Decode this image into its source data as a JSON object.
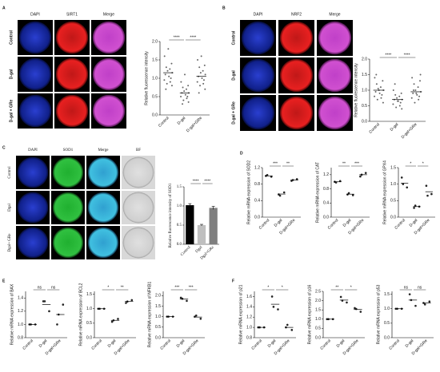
{
  "panel_labels": [
    "A",
    "B",
    "C",
    "D",
    "E",
    "F"
  ],
  "image_panels": [
    {
      "columns": [
        "DAPI",
        "SIRT1",
        "Merge"
      ],
      "rows": [
        "Control",
        "D-gal",
        "D-gal + GRe"
      ]
    },
    {
      "columns": [
        "DAPI",
        "NRF2",
        "Merge"
      ],
      "rows": [
        "Control",
        "D-gal",
        "D-gal + GRe"
      ]
    },
    {
      "columns": [
        "DAPI",
        "SOD1",
        "Merge",
        "BF"
      ],
      "rows": [
        "Control",
        "Dgal",
        "Dgal+ GRe"
      ]
    }
  ],
  "chart_data": [
    {
      "type": "dot",
      "y_label": "Relative fluorescence intensity",
      "categories": [
        "Control",
        "D-gal",
        "D-gal+GRe"
      ],
      "color": "#666666",
      "values": [
        1.15,
        0.6,
        1.05
      ],
      "points": [
        [
          1.6,
          1.4,
          1.3,
          1.25,
          1.2,
          1.15,
          1.1,
          1.05,
          1.0,
          0.95,
          0.9,
          0.85,
          0.8,
          0.7,
          1.8
        ],
        [
          0.9,
          0.8,
          0.75,
          0.7,
          0.65,
          0.6,
          0.6,
          0.55,
          0.5,
          0.5,
          0.45,
          0.4,
          0.35,
          0.3,
          1.1
        ],
        [
          1.5,
          1.35,
          1.3,
          1.2,
          1.15,
          1.1,
          1.05,
          1.0,
          0.95,
          0.9,
          0.85,
          0.8,
          0.7,
          0.6,
          1.6
        ]
      ],
      "ylim": [
        0,
        2
      ],
      "yticks": [
        {
          "value": 0,
          "label": "0.0"
        },
        0.5,
        {
          "value": 1,
          "label": "1.0"
        },
        1.5,
        {
          "value": 2,
          "label": "2.0"
        }
      ],
      "significance": [
        "****",
        "****"
      ]
    },
    {
      "type": "dot",
      "y_label": "Relative fluorescence intensity",
      "categories": [
        "Control",
        "D-gal",
        "D-gal+GRe"
      ],
      "color": "#666666",
      "values": [
        1.0,
        0.7,
        0.95
      ],
      "points": [
        [
          1.4,
          1.3,
          1.2,
          1.1,
          1.05,
          1.0,
          0.95,
          0.9,
          0.85,
          0.8,
          0.75,
          0.7,
          0.6,
          1.5,
          1.0
        ],
        [
          1.0,
          0.9,
          0.85,
          0.8,
          0.75,
          0.7,
          0.7,
          0.65,
          0.6,
          0.55,
          0.5,
          0.45,
          0.4,
          1.2,
          0.65
        ],
        [
          1.4,
          1.3,
          1.2,
          1.1,
          1.0,
          0.95,
          0.9,
          0.85,
          0.8,
          0.75,
          0.7,
          0.6,
          1.5,
          1.0,
          0.9
        ]
      ],
      "ylim": [
        0,
        2
      ],
      "yticks": [
        {
          "value": 0,
          "label": "0.0"
        },
        0.5,
        {
          "value": 1,
          "label": "1.0"
        },
        1.5,
        {
          "value": 2,
          "label": "2.0"
        }
      ],
      "significance": [
        "****",
        "****"
      ]
    },
    {
      "type": "bar",
      "y_label": "Relative fluorescence intensity of SOD1",
      "categories": [
        "Control",
        "Dgal",
        "Dgal+GRe"
      ],
      "values": [
        1.02,
        0.5,
        0.95
      ],
      "errors": [
        0.04,
        0.02,
        0.04
      ],
      "colors": [
        "#000000",
        "#bfbfbf",
        "#7f7f7f"
      ],
      "ylim": [
        0,
        1.5
      ],
      "yticks": [
        {
          "value": 0,
          "label": "0.0"
        },
        0.5,
        {
          "value": 1,
          "label": "1.0"
        },
        1.5
      ],
      "significance": [
        "****",
        "****"
      ]
    },
    {
      "type": "dot",
      "y_label": "Relative mRNA expression of SOD2",
      "categories": [
        "Control",
        "D-gal",
        "D-gal+GRe"
      ],
      "color": "#222222",
      "values": [
        1.0,
        0.56,
        0.9
      ],
      "points": [
        [
          1.0,
          0.98,
          1.02
        ],
        [
          0.55,
          0.6,
          0.52
        ],
        [
          0.88,
          0.92,
          0.9
        ]
      ],
      "ylim": [
        0,
        1.2
      ],
      "yticks": [
        {
          "value": 0,
          "label": "0.0"
        },
        0.4,
        0.8,
        1.2
      ],
      "significance": [
        "***",
        "**"
      ]
    },
    {
      "type": "dot",
      "y_label": "Relative mRNA expression of CAT",
      "categories": [
        "Control",
        "D-gal",
        "D-gal+GRe"
      ],
      "color": "#222222",
      "values": [
        1.0,
        0.65,
        1.2
      ],
      "points": [
        [
          1.0,
          1.02,
          0.98
        ],
        [
          0.64,
          0.62,
          0.68
        ],
        [
          1.15,
          1.25,
          1.2
        ]
      ],
      "ylim": [
        0,
        1.4
      ],
      "yticks": [
        {
          "value": 0,
          "label": "0.0"
        },
        0.4,
        0.8,
        1.2
      ],
      "significance": [
        "**",
        "***"
      ]
    },
    {
      "type": "dot",
      "y_label": "Relative mRNA expression of GPX4",
      "categories": [
        "Control",
        "D-gal",
        "D-gal+GRe"
      ],
      "color": "#222222",
      "values": [
        1.03,
        0.32,
        0.77
      ],
      "points": [
        [
          1.2,
          0.9,
          1.0
        ],
        [
          0.28,
          0.32,
          0.35
        ],
        [
          0.95,
          0.7,
          0.65
        ]
      ],
      "ylim": [
        0,
        1.5
      ],
      "yticks": [
        {
          "value": 0,
          "label": "0.0"
        },
        0.5,
        {
          "value": 1,
          "label": "1.0"
        },
        1.5
      ],
      "significance": [
        "*",
        "*"
      ]
    },
    {
      "type": "dot",
      "y_label": "Relative mRNA expression of BAX",
      "categories": [
        "Control",
        "D-gal",
        "D-gal+GRe"
      ],
      "color": "#222222",
      "values": [
        1.0,
        1.3,
        1.15
      ],
      "points": [
        [
          1.0,
          1.0,
          1.0
        ],
        [
          1.35,
          1.2,
          1.35
        ],
        [
          1.0,
          1.3,
          1.15
        ]
      ],
      "ylim": [
        0.8,
        1.5
      ],
      "yticks": [
        0.8,
        {
          "value": 1,
          "label": "1.0"
        },
        1.2,
        1.4
      ],
      "significance": [
        "ns",
        "ns"
      ]
    },
    {
      "type": "dot",
      "y_label": "Relative mRNA expression of BCL2",
      "categories": [
        "Control",
        "D-gal",
        "D-gal+GRe"
      ],
      "color": "#222222",
      "values": [
        1.0,
        0.6,
        1.25
      ],
      "points": [
        [
          1.0,
          1.0,
          1.0
        ],
        [
          0.55,
          0.65,
          0.6
        ],
        [
          1.2,
          1.3,
          1.25
        ]
      ],
      "ylim": [
        0,
        1.6
      ],
      "yticks": [
        {
          "value": 0,
          "label": "0.0"
        },
        0.5,
        {
          "value": 1,
          "label": "1.0"
        },
        1.5
      ],
      "significance": [
        "*",
        "**"
      ]
    },
    {
      "type": "dot",
      "y_label": "Relative mRNA expression of NFKB1",
      "categories": [
        "Control",
        "D-gal",
        "D-gal+GRe"
      ],
      "color": "#222222",
      "values": [
        1.0,
        1.83,
        0.98
      ],
      "points": [
        [
          1.0,
          1.0,
          1.0
        ],
        [
          1.9,
          1.75,
          1.85
        ],
        [
          1.0,
          0.9,
          1.05
        ]
      ],
      "ylim": [
        0,
        2.2
      ],
      "yticks": [
        {
          "value": 0,
          "label": "0.0"
        },
        0.5,
        {
          "value": 1,
          "label": "1.0"
        },
        1.5,
        {
          "value": 2,
          "label": "2.0"
        }
      ],
      "significance": [
        "***",
        "***"
      ]
    },
    {
      "type": "dot",
      "y_label": "Relative mRNA expression of p21",
      "categories": [
        "Control",
        "D-gal",
        "D-gal+GRe"
      ],
      "color": "#222222",
      "values": [
        1.0,
        1.45,
        1.0
      ],
      "points": [
        [
          1.0,
          1.0,
          1.0
        ],
        [
          1.6,
          1.35,
          1.4
        ],
        [
          1.0,
          0.95,
          1.05
        ]
      ],
      "ylim": [
        0.8,
        1.7
      ],
      "yticks": [
        0.8,
        {
          "value": 1,
          "label": "1.0"
        },
        1.2,
        1.4,
        1.6
      ],
      "significance": [
        "*",
        "*"
      ]
    },
    {
      "type": "dot",
      "y_label": "Relative mRNA expression of p16",
      "categories": [
        "Control",
        "D-gal",
        "D-gal+GRe"
      ],
      "color": "#222222",
      "values": [
        1.0,
        2.03,
        1.52
      ],
      "points": [
        [
          1.0,
          1.0,
          1.0
        ],
        [
          2.2,
          1.9,
          2.0
        ],
        [
          1.6,
          1.4,
          1.55
        ]
      ],
      "ylim": [
        0,
        2.5
      ],
      "yticks": [
        {
          "value": 0,
          "label": "0.0"
        },
        0.5,
        {
          "value": 1,
          "label": "1.0"
        },
        1.5,
        {
          "value": 2,
          "label": "2.0"
        },
        2.5
      ],
      "significance": [
        "**",
        "*"
      ]
    },
    {
      "type": "dot",
      "y_label": "Relative mRNA expression of p53",
      "categories": [
        "Control",
        "D-gal",
        "D-gal+GRe"
      ],
      "color": "#222222",
      "values": [
        1.0,
        1.3,
        1.2
      ],
      "points": [
        [
          1.0,
          1.0,
          1.0
        ],
        [
          1.5,
          1.1,
          1.3
        ],
        [
          1.2,
          1.25,
          1.15
        ]
      ],
      "ylim": [
        0,
        1.6
      ],
      "yticks": [
        {
          "value": 0,
          "label": "0.0"
        },
        0.5,
        {
          "value": 1,
          "label": "1.0"
        },
        1.5
      ],
      "significance": [
        "ns",
        "ns"
      ]
    }
  ]
}
